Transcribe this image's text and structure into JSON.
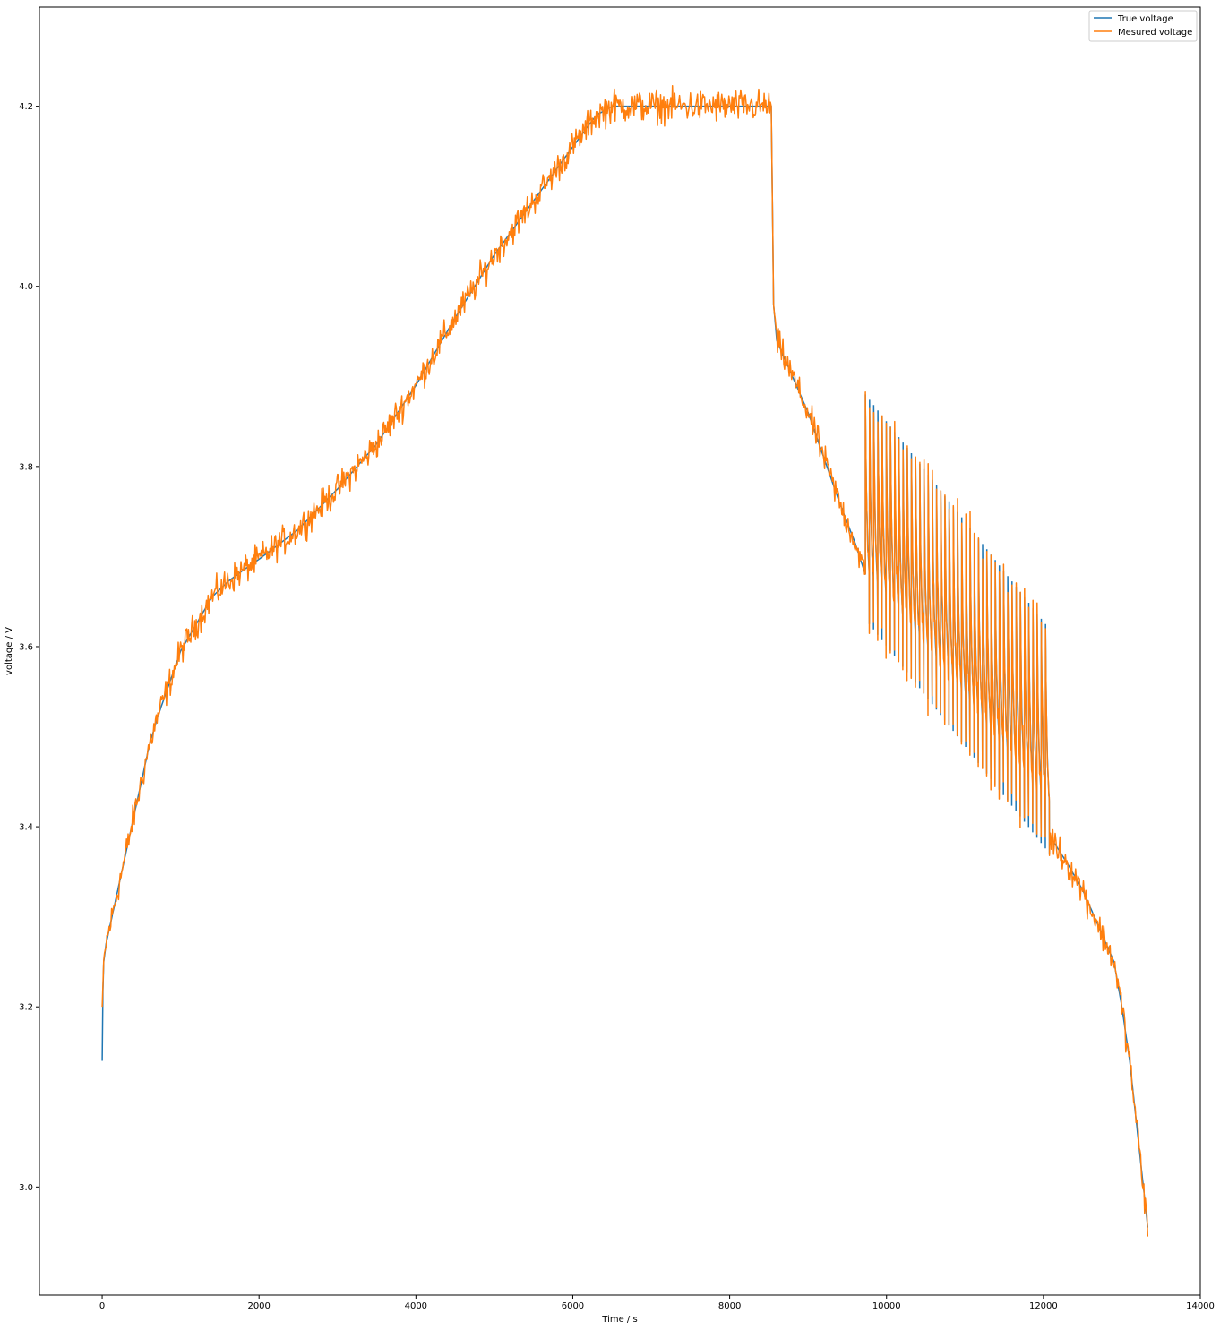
{
  "chart_data": {
    "type": "line",
    "title": "",
    "xlabel": "Time / s",
    "ylabel": "voltage / V",
    "xlim": [
      -800,
      14000
    ],
    "ylim": [
      2.88,
      4.31
    ],
    "xticks": [
      0,
      2000,
      4000,
      6000,
      8000,
      10000,
      12000,
      14000
    ],
    "yticks": [
      3.0,
      3.2,
      3.4,
      3.6,
      3.8,
      4.0,
      4.2
    ],
    "xtick_labels": [
      "0",
      "2000",
      "4000",
      "6000",
      "8000",
      "10000",
      "12000",
      "14000"
    ],
    "ytick_labels": [
      "3.0",
      "3.2",
      "3.4",
      "3.6",
      "3.8",
      "4.0",
      "4.2"
    ],
    "grid": false,
    "legend_position": "top-right",
    "series": [
      {
        "name": "True voltage",
        "color": "#1f77b4",
        "x": [
          0,
          5,
          20,
          50,
          100,
          200,
          300,
          400,
          500,
          600,
          700,
          800,
          1000,
          1200,
          1400,
          1600,
          1800,
          2000,
          2500,
          3000,
          3500,
          4000,
          4500,
          5000,
          5500,
          6000,
          6300,
          6500,
          7000,
          7500,
          8000,
          8500,
          8530,
          8560,
          8600,
          8800,
          9000,
          9200,
          9400,
          9600,
          9730
        ],
        "y": [
          3.14,
          3.2,
          3.25,
          3.27,
          3.29,
          3.33,
          3.37,
          3.41,
          3.45,
          3.49,
          3.52,
          3.545,
          3.595,
          3.625,
          3.655,
          3.672,
          3.685,
          3.697,
          3.73,
          3.775,
          3.825,
          3.89,
          3.965,
          4.035,
          4.095,
          4.155,
          4.19,
          4.2,
          4.2,
          4.2,
          4.2,
          4.2,
          4.2,
          3.98,
          3.94,
          3.9,
          3.86,
          3.81,
          3.76,
          3.715,
          3.68
        ]
      },
      {
        "name": "Mesured voltage",
        "color": "#ff7f0e",
        "x": [
          0,
          8500,
          8530,
          8560,
          13330
        ],
        "y": [
          3.2,
          4.2,
          4.2,
          3.98,
          2.945
        ]
      }
    ],
    "pulse_segment": {
      "x_start": 9730,
      "x_end": 12080,
      "count": 44,
      "peak_start": 3.88,
      "peak_end": 3.625,
      "base_start": 3.665,
      "base_end": 3.41
    },
    "tail_segment": {
      "x": [
        12080,
        12300,
        12500,
        12700,
        12900,
        13000,
        13100,
        13200,
        13330
      ],
      "y": [
        3.39,
        3.36,
        3.33,
        3.29,
        3.25,
        3.2,
        3.14,
        3.06,
        2.955
      ]
    }
  }
}
